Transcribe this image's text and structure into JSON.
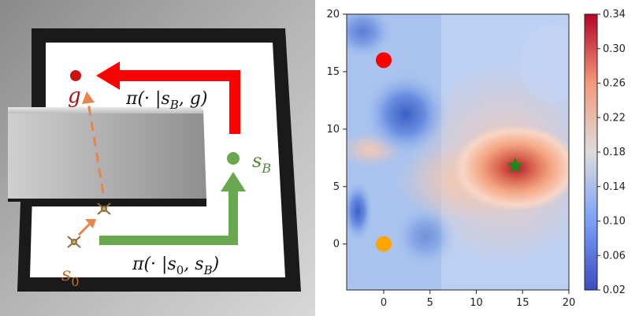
{
  "maze": {
    "label_g": "g",
    "label_s0": "s",
    "label_s0_sub": "0",
    "label_sB": "s",
    "label_sB_sub": "B",
    "policy_top": {
      "prefix": "π(· |",
      "s": "s",
      "sub": "B",
      "suffix": ", g)"
    },
    "policy_bottom": {
      "prefix": "π(· |",
      "s": "s",
      "sub0": "0",
      "mid": ", ",
      "s2": "s",
      "sub2": "B",
      "suffix": ")"
    },
    "colors": {
      "goal": "#cc1111",
      "start": "#d97a2b",
      "subgoal": "#6aa84f",
      "red_arrow": "#ff0000",
      "green_arrow": "#6aa84f",
      "orange_arrow": "#e8844a"
    }
  },
  "chart_data": {
    "type": "heatmap",
    "xlim": [
      -4,
      20
    ],
    "ylim": [
      -4,
      20
    ],
    "x_ticks": [
      "0",
      "5",
      "10",
      "15",
      "20"
    ],
    "y_ticks": [
      "0",
      "5",
      "10",
      "15",
      "20"
    ],
    "colorbar_ticks": [
      "0.02",
      "0.06",
      "0.10",
      "0.14",
      "0.18",
      "0.22",
      "0.26",
      "0.30",
      "0.34"
    ],
    "colorbar_range": [
      0.02,
      0.34
    ],
    "markers": [
      {
        "name": "goal",
        "x": 0,
        "y": 16,
        "color": "#ff0000",
        "shape": "circle"
      },
      {
        "name": "start",
        "x": 0,
        "y": 0,
        "color": "#ffa500",
        "shape": "circle"
      },
      {
        "name": "subgoal",
        "x": 14.2,
        "y": 6.8,
        "color": "#1a8a1a",
        "shape": "star"
      }
    ]
  }
}
